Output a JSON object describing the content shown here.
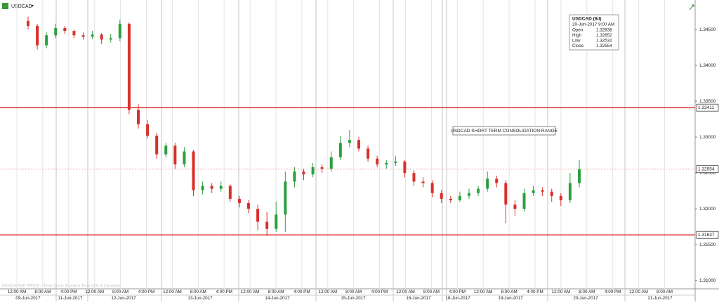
{
  "chart_data": {
    "type": "candlestick",
    "symbol": "USDCAD",
    "info": {
      "title": "USDCAD (8d)",
      "datetime": "20-Jun-2017 9:00 AM",
      "rows": [
        [
          "Open",
          "1.32638"
        ],
        [
          "High",
          "1.32652"
        ],
        [
          "Low",
          "1.32532"
        ],
        [
          "Close",
          "1.32554"
        ]
      ]
    },
    "annotation": "USDCAD SHORT TERM CONSOLIDATION RANGE",
    "footer": "INDICATIVE PRICE - Time Zone: Eastern Time (US & Canada)",
    "up_color": "#2e9e3e",
    "down_color": "#d9302c",
    "level_color": "#d9302c",
    "ylim": [
      1.30885,
      1.34912
    ],
    "yticks": [
      {
        "value": 1.345,
        "label": "1.34500"
      },
      {
        "value": 1.34,
        "label": "1.34000"
      },
      {
        "value": 1.335,
        "label": "1.33500"
      },
      {
        "value": 1.33,
        "label": "1.33000"
      },
      {
        "value": 1.325,
        "label": "1.32500"
      },
      {
        "value": 1.32,
        "label": "1.32000"
      },
      {
        "value": 1.315,
        "label": "1.31500"
      },
      {
        "value": 1.31,
        "label": "1.31000"
      }
    ],
    "levels": [
      1.33411,
      1.31637
    ],
    "last_price": 1.32554,
    "times": [
      "12:00 AM",
      "8:00 AM",
      "4:00 PM",
      "12:00 AM",
      "8:00 AM",
      "4:00 PM",
      "12:00 AM",
      "8:00 AM",
      "4:00 PM",
      "12:00 AM",
      "8:00 AM",
      "4:00 PM",
      "12:00 AM",
      "8:00 AM",
      "4:00 PM",
      "12:00 AM",
      "8:00 AM",
      "4:00 PM",
      "12:00 AM",
      "8:00 AM",
      "4:00 PM",
      "12:00 AM",
      "8:00 AM",
      "4:00 PM",
      "12:00 AM",
      "8:00 AM"
    ],
    "dates": [
      "09-Jun-2017",
      "11-Jun-2017",
      "12-Jun-2017",
      "13-Jun-2017",
      "14-Jun-2017",
      "15-Jun-2017",
      "16-Jun-2017",
      "18-Jun-2017",
      "19-Jun-2017",
      "20-Jun-2017",
      "21-Jun-2017"
    ],
    "ohlc": [
      [
        1.3462,
        1.3468,
        1.345,
        1.3455
      ],
      [
        1.3455,
        1.3458,
        1.3422,
        1.3428
      ],
      [
        1.3428,
        1.3446,
        1.3424,
        1.3442
      ],
      [
        1.3442,
        1.3458,
        1.3438,
        1.3452
      ],
      [
        1.3452,
        1.3455,
        1.3444,
        1.3448
      ],
      [
        1.3448,
        1.345,
        1.3438,
        1.3442
      ],
      [
        1.3442,
        1.3446,
        1.3436,
        1.344
      ],
      [
        1.344,
        1.3448,
        1.3437,
        1.3443
      ],
      [
        1.3443,
        1.3445,
        1.343,
        1.3436
      ],
      [
        1.3436,
        1.3444,
        1.3432,
        1.3438
      ],
      [
        1.3438,
        1.3464,
        1.3434,
        1.3458
      ],
      [
        1.3458,
        1.346,
        1.3332,
        1.3338
      ],
      [
        1.3338,
        1.3346,
        1.3312,
        1.3318
      ],
      [
        1.3318,
        1.3324,
        1.3298,
        1.3302
      ],
      [
        1.3302,
        1.3306,
        1.327,
        1.3276
      ],
      [
        1.3276,
        1.3292,
        1.3272,
        1.3288
      ],
      [
        1.3288,
        1.3292,
        1.3256,
        1.3262
      ],
      [
        1.3262,
        1.3286,
        1.3258,
        1.328
      ],
      [
        1.328,
        1.3282,
        1.3218,
        1.3226
      ],
      [
        1.3226,
        1.3238,
        1.322,
        1.3232
      ],
      [
        1.3232,
        1.3236,
        1.3222,
        1.3228
      ],
      [
        1.3228,
        1.3238,
        1.3224,
        1.3232
      ],
      [
        1.3232,
        1.3234,
        1.321,
        1.3214
      ],
      [
        1.3214,
        1.3218,
        1.3202,
        1.3208
      ],
      [
        1.3208,
        1.3212,
        1.3194,
        1.32
      ],
      [
        1.32,
        1.3206,
        1.317,
        1.3182
      ],
      [
        1.3182,
        1.3196,
        1.3162,
        1.3172
      ],
      [
        1.3172,
        1.321,
        1.3168,
        1.3192
      ],
      [
        1.3192,
        1.3252,
        1.3168,
        1.3238
      ],
      [
        1.3238,
        1.3258,
        1.323,
        1.3252
      ],
      [
        1.3252,
        1.3256,
        1.324,
        1.3248
      ],
      [
        1.3248,
        1.3264,
        1.3244,
        1.3258
      ],
      [
        1.3258,
        1.3262,
        1.325,
        1.3256
      ],
      [
        1.3256,
        1.328,
        1.3252,
        1.3272
      ],
      [
        1.3272,
        1.3302,
        1.3268,
        1.3292
      ],
      [
        1.3292,
        1.331,
        1.3286,
        1.3296
      ],
      [
        1.3296,
        1.33,
        1.328,
        1.3284
      ],
      [
        1.3284,
        1.3288,
        1.3266,
        1.327
      ],
      [
        1.327,
        1.3274,
        1.3258,
        1.3262
      ],
      [
        1.3262,
        1.3268,
        1.3256,
        1.3264
      ],
      [
        1.3264,
        1.3274,
        1.326,
        1.3266
      ],
      [
        1.3266,
        1.3268,
        1.3244,
        1.325
      ],
      [
        1.325,
        1.3254,
        1.3232,
        1.3238
      ],
      [
        1.3238,
        1.3244,
        1.323,
        1.3236
      ],
      [
        1.3236,
        1.324,
        1.3216,
        1.3222
      ],
      [
        1.3222,
        1.3226,
        1.3208,
        1.3214
      ],
      [
        1.3214,
        1.3218,
        1.3208,
        1.3212
      ],
      [
        1.3212,
        1.3224,
        1.321,
        1.3218
      ],
      [
        1.3218,
        1.3228,
        1.3214,
        1.3222
      ],
      [
        1.3222,
        1.3232,
        1.3218,
        1.3228
      ],
      [
        1.3228,
        1.3252,
        1.3224,
        1.3242
      ],
      [
        1.3242,
        1.3246,
        1.323,
        1.3236
      ],
      [
        1.3236,
        1.324,
        1.318,
        1.3206
      ],
      [
        1.3206,
        1.3212,
        1.319,
        1.32
      ],
      [
        1.32,
        1.3228,
        1.3196,
        1.3222
      ],
      [
        1.3222,
        1.3232,
        1.3218,
        1.3226
      ],
      [
        1.3226,
        1.323,
        1.3218,
        1.3224
      ],
      [
        1.3224,
        1.3228,
        1.321,
        1.3218
      ],
      [
        1.3218,
        1.3222,
        1.3204,
        1.3212
      ],
      [
        1.3212,
        1.325,
        1.3208,
        1.3236
      ],
      [
        1.3236,
        1.3268,
        1.323,
        1.32554
      ]
    ]
  }
}
